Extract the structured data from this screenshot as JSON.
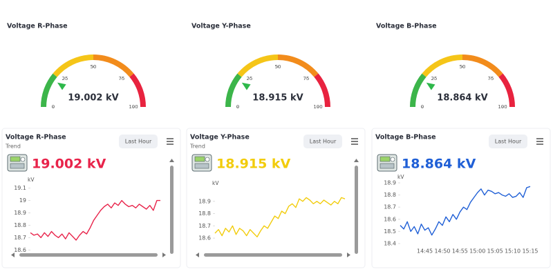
{
  "chart_data": [
    {
      "type": "gauge",
      "title": "Voltage R-Phase",
      "values": [
        19.002
      ],
      "value_labels": [
        "19.002 kV"
      ],
      "xlim": [
        0,
        100
      ],
      "xticks": [
        0,
        25,
        50,
        75,
        100
      ],
      "bands": [
        {
          "from": 0,
          "to": 22,
          "color": "#3cb54a"
        },
        {
          "from": 22,
          "to": 50,
          "color": "#f5c518"
        },
        {
          "from": 50,
          "to": 78,
          "color": "#f28c1c"
        },
        {
          "from": 78,
          "to": 100,
          "color": "#e8233f"
        }
      ],
      "pointer_color": "#2eb84b"
    },
    {
      "type": "gauge",
      "title": "Voltage Y-Phase",
      "values": [
        18.915
      ],
      "value_labels": [
        "18.915 kV"
      ],
      "xlim": [
        0,
        100
      ],
      "xticks": [
        0,
        25,
        50,
        75,
        100
      ],
      "bands": [
        {
          "from": 0,
          "to": 22,
          "color": "#3cb54a"
        },
        {
          "from": 22,
          "to": 50,
          "color": "#f5c518"
        },
        {
          "from": 50,
          "to": 78,
          "color": "#f28c1c"
        },
        {
          "from": 78,
          "to": 100,
          "color": "#e8233f"
        }
      ],
      "pointer_color": "#2eb84b"
    },
    {
      "type": "gauge",
      "title": "Voltage B-Phase",
      "values": [
        18.864
      ],
      "value_labels": [
        "18.864 kV"
      ],
      "xlim": [
        0,
        100
      ],
      "xticks": [
        0,
        25,
        50,
        75,
        100
      ],
      "bands": [
        {
          "from": 0,
          "to": 22,
          "color": "#3cb54a"
        },
        {
          "from": 22,
          "to": 50,
          "color": "#f5c518"
        },
        {
          "from": 50,
          "to": 78,
          "color": "#f28c1c"
        },
        {
          "from": 78,
          "to": 100,
          "color": "#e8233f"
        }
      ],
      "pointer_color": "#2eb84b"
    },
    {
      "type": "line",
      "title": "Voltage R-Phase",
      "subtitle": "Trend",
      "button": "Last Hour",
      "headline": "19.002 kV",
      "ylabel": "kV",
      "color": "#e8234a",
      "values": [
        18.74,
        18.72,
        18.73,
        18.7,
        18.74,
        18.71,
        18.75,
        18.72,
        18.7,
        18.73,
        18.69,
        18.74,
        18.71,
        18.68,
        18.72,
        18.75,
        18.73,
        18.78,
        18.84,
        18.88,
        18.92,
        18.95,
        18.97,
        18.94,
        18.98,
        18.96,
        19.0,
        18.97,
        18.95,
        18.96,
        18.94,
        18.97,
        18.95,
        18.93,
        18.96,
        18.92,
        19.0,
        19.0
      ],
      "ylim": [
        18.58,
        19.12
      ],
      "yticks": [
        18.6,
        18.7,
        18.8,
        18.9,
        19,
        19.1
      ],
      "scrollbars": true
    },
    {
      "type": "line",
      "title": "Voltage Y-Phase",
      "subtitle": "Trend",
      "button": "Last Hour",
      "headline": "18.915 kV",
      "ylabel": "kV",
      "color": "#f2cc0c",
      "values": [
        18.64,
        18.67,
        18.62,
        18.68,
        18.65,
        18.7,
        18.63,
        18.68,
        18.66,
        18.62,
        18.67,
        18.64,
        18.61,
        18.66,
        18.7,
        18.68,
        18.73,
        18.78,
        18.76,
        18.82,
        18.8,
        18.86,
        18.88,
        18.85,
        18.92,
        18.9,
        18.93,
        18.91,
        18.88,
        18.9,
        18.88,
        18.91,
        18.89,
        18.87,
        18.9,
        18.88,
        18.93,
        18.92
      ],
      "ylim": [
        18.55,
        19.0
      ],
      "yticks": [
        18.6,
        18.7,
        18.8,
        18.9
      ],
      "scrollbars": true
    },
    {
      "type": "line",
      "title": "Voltage B-Phase",
      "button": "Last Hour",
      "headline": "18.864 kV",
      "ylabel": "kV",
      "color": "#1f5fd6",
      "categories": [
        null,
        null,
        null,
        null,
        null,
        null,
        null,
        "14:45",
        null,
        null,
        null,
        null,
        "14:50",
        null,
        null,
        null,
        null,
        "14:55",
        null,
        null,
        null,
        null,
        "15:00",
        null,
        null,
        null,
        null,
        "15:05",
        null,
        null,
        null,
        null,
        "15:10",
        null,
        null,
        null,
        null,
        "15:15"
      ],
      "values": [
        18.55,
        18.52,
        18.58,
        18.5,
        18.54,
        18.48,
        18.56,
        18.51,
        18.53,
        18.47,
        18.52,
        18.58,
        18.55,
        18.62,
        18.58,
        18.64,
        18.6,
        18.66,
        18.7,
        18.68,
        18.74,
        18.78,
        18.82,
        18.85,
        18.8,
        18.84,
        18.83,
        18.81,
        18.82,
        18.8,
        18.79,
        18.81,
        18.78,
        18.79,
        18.82,
        18.78,
        18.86,
        18.87
      ],
      "ylim": [
        18.4,
        18.9
      ],
      "yticks": [
        18.4,
        18.5,
        18.6,
        18.7,
        18.8,
        18.9
      ],
      "scrollbars": false
    }
  ]
}
